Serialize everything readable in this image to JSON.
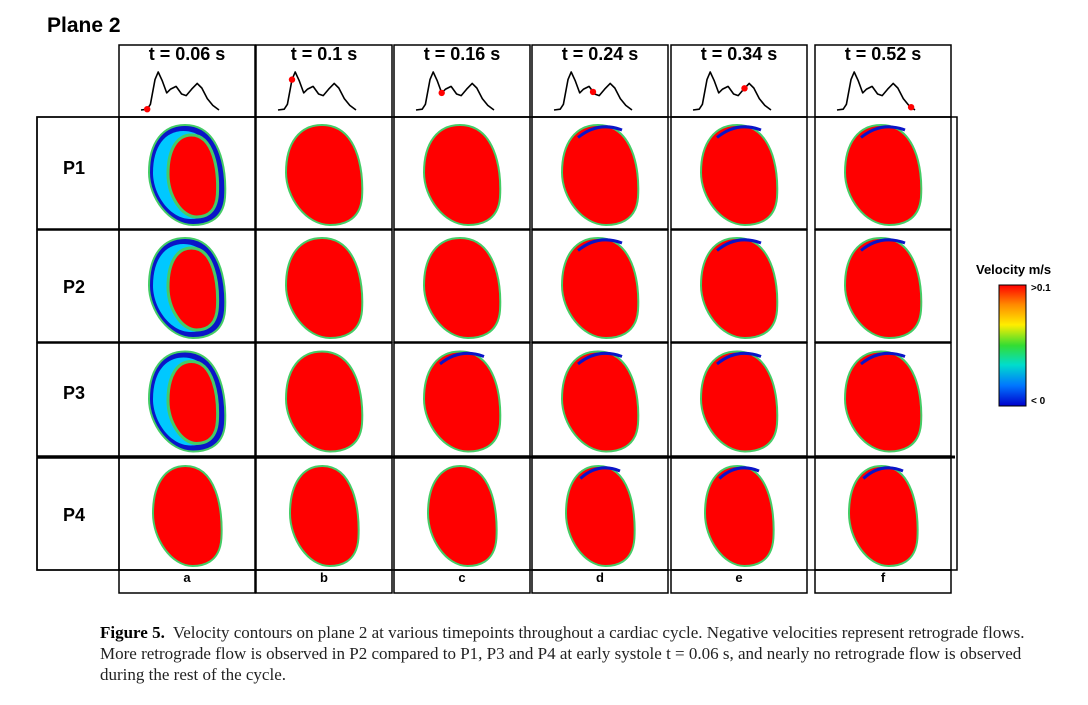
{
  "figure": {
    "plane_title": "Plane 2",
    "time_labels": [
      "t = 0.06 s",
      "t = 0.1 s",
      "t = 0.16 s",
      "t = 0.24 s",
      "t = 0.34 s",
      "t = 0.52 s"
    ],
    "row_labels": [
      "P1",
      "P2",
      "P3",
      "P4"
    ],
    "column_labels": [
      "a",
      "b",
      "c",
      "d",
      "e",
      "f"
    ],
    "legend": {
      "title": "Velocity m/s",
      "max_label": ">0.1",
      "min_label": "< 0",
      "colors": [
        "#0000cc",
        "#0077ff",
        "#00ddcc",
        "#33dd33",
        "#ffee00",
        "#ff8800",
        "#ff0000"
      ]
    },
    "contour_colors": {
      "forward": "#ff0000",
      "edge": "#44cc66",
      "retrograde": "#0a14c8",
      "mid": "#00c8ff"
    },
    "waveform_markers": [
      0.08,
      0.18,
      0.33,
      0.5,
      0.66,
      0.95
    ],
    "waveform_marker_color": "#ff0000"
  },
  "caption": {
    "figure_number": "Figure 5.",
    "text": "Velocity contours on plane 2 at various timepoints throughout a cardiac cycle. Negative velocities represent retrograde flows. More retrograde flow is observed in P2 compared to P1, P3 and P4 at early systole t = 0.06 s, and nearly no retrograde flow is observed during the rest of the cycle."
  }
}
